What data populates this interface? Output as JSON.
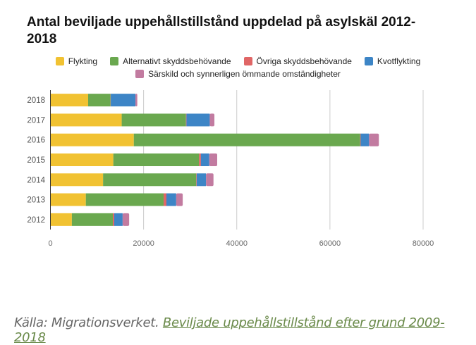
{
  "chart_data": {
    "type": "bar",
    "orientation": "horizontal",
    "stacked": true,
    "title": "Antal beviljade uppehållstillstånd uppdelad på asylskäl 2012-2018",
    "xlabel": "",
    "ylabel": "",
    "xlim": [
      0,
      80000
    ],
    "xticks": [
      "0",
      "20000",
      "40000",
      "60000",
      "80000"
    ],
    "xtick_values": [
      0,
      20000,
      40000,
      60000,
      80000
    ],
    "grid": true,
    "legend_position": "top",
    "categories": [
      "2018",
      "2017",
      "2016",
      "2015",
      "2014",
      "2013",
      "2012"
    ],
    "series": [
      {
        "name": "Flykting",
        "color": "#f1c232",
        "values": [
          8100,
          15300,
          17900,
          13500,
          11300,
          7600,
          4600
        ]
      },
      {
        "name": "Alternativt skyddsbehövande",
        "color": "#6aa84f",
        "values": [
          4800,
          13800,
          48600,
          18400,
          20000,
          16700,
          8800
        ]
      },
      {
        "name": "Övriga skyddsbehövande",
        "color": "#e06666",
        "values": [
          50,
          100,
          100,
          400,
          100,
          600,
          300
        ]
      },
      {
        "name": "Kvotflykting",
        "color": "#3d85c6",
        "values": [
          5300,
          5000,
          1800,
          1800,
          2000,
          2100,
          1800
        ]
      },
      {
        "name": "Särskild och synnerligen ömmande omständigheter",
        "color": "#c27ba0",
        "values": [
          400,
          1000,
          2100,
          1700,
          1600,
          1400,
          1400
        ]
      }
    ]
  },
  "source": {
    "prefix": "Källa: Migrationsverket. ",
    "link_text": "Beviljade uppehållstillstånd efter grund 2009-2018"
  }
}
